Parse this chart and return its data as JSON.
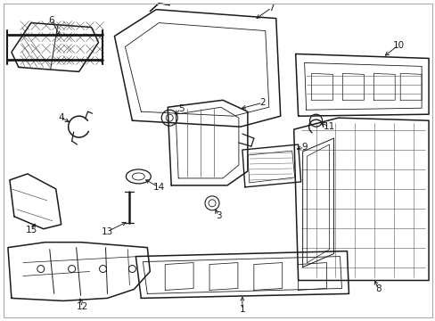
{
  "bg": "#ffffff",
  "lc": "#1a1a1a",
  "fig_w": 4.89,
  "fig_h": 3.6,
  "dpi": 100,
  "border": "#aaaaaa",
  "parts": {
    "label_fs": 7.5
  }
}
